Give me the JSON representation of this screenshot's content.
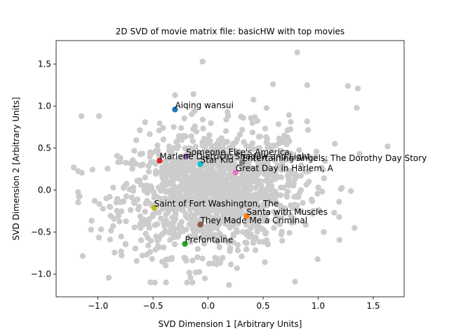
{
  "chart_data": {
    "type": "scatter",
    "title": "2D SVD of movie matrix file: basicHW with top movies",
    "xlabel": "SVD Dimension 1 [Arbitrary Units]",
    "ylabel": "SVD Dimension 2 [Arbitrary Units]",
    "xlim": [
      -1.38,
      1.78
    ],
    "ylim": [
      -1.27,
      1.78
    ],
    "xticks": [
      -1.0,
      -0.5,
      0.0,
      0.5,
      1.0,
      1.5
    ],
    "yticks": [
      -1.0,
      -0.5,
      0.0,
      0.5,
      1.0,
      1.5
    ],
    "xtick_labels": [
      "−1.0",
      "−0.5",
      "0.0",
      "0.5",
      "1.0",
      "1.5"
    ],
    "ytick_labels": [
      "−1.0",
      "−0.5",
      "0.0",
      "0.5",
      "1.0",
      "1.5"
    ],
    "grid": false,
    "background_color": "#cccccc",
    "background_count": 1400,
    "background_outliers": [
      {
        "x": 1.63,
        "y": 0.52
      },
      {
        "x": -1.22,
        "y": 0.27
      },
      {
        "x": 0.81,
        "y": 1.64
      },
      {
        "x": -0.05,
        "y": 1.53
      },
      {
        "x": 1.36,
        "y": 1.21
      },
      {
        "x": 1.27,
        "y": 1.24
      },
      {
        "x": 0.9,
        "y": 1.25
      },
      {
        "x": 0.59,
        "y": 1.26
      },
      {
        "x": -0.3,
        "y": 1.13
      },
      {
        "x": 0.19,
        "y": -1.13
      },
      {
        "x": 0.79,
        "y": -1.09
      },
      {
        "x": -0.16,
        "y": -1.04
      },
      {
        "x": -1.15,
        "y": 0.88
      },
      {
        "x": 1.35,
        "y": 0.98
      },
      {
        "x": 1.33,
        "y": -0.45
      },
      {
        "x": 1.19,
        "y": -0.32
      },
      {
        "x": -0.99,
        "y": 0.88
      },
      {
        "x": -0.79,
        "y": -0.73
      }
    ],
    "highlighted": [
      {
        "label": "Aiqing wansui",
        "x": -0.3,
        "y": 0.96,
        "color": "#1f77b4"
      },
      {
        "label": "Santa with Muscles",
        "x": 0.35,
        "y": -0.31,
        "color": "#ff7f0e"
      },
      {
        "label": "Prefontaine",
        "x": -0.21,
        "y": -0.64,
        "color": "#2ca02c"
      },
      {
        "label": "Marlene Dietrich: Shadow and Light",
        "x": -0.44,
        "y": 0.35,
        "color": "#d62728"
      },
      {
        "label": "Someone Else's America",
        "x": -0.2,
        "y": 0.4,
        "color": "#9467bd"
      },
      {
        "label": "They Made Me a Criminal",
        "x": -0.07,
        "y": -0.41,
        "color": "#8c564b"
      },
      {
        "label": "Great Day in Harlem, A",
        "x": 0.25,
        "y": 0.21,
        "color": "#e377c2"
      },
      {
        "label": "Entertaining Angels: The Dorothy Day Story",
        "x": 0.31,
        "y": 0.33,
        "color": "#7f7f7f"
      },
      {
        "label": "Saint of Fort Washington, The",
        "x": -0.49,
        "y": -0.21,
        "color": "#bcbd22"
      },
      {
        "label": "Star Kid",
        "x": -0.07,
        "y": 0.31,
        "color": "#17becf"
      }
    ]
  }
}
